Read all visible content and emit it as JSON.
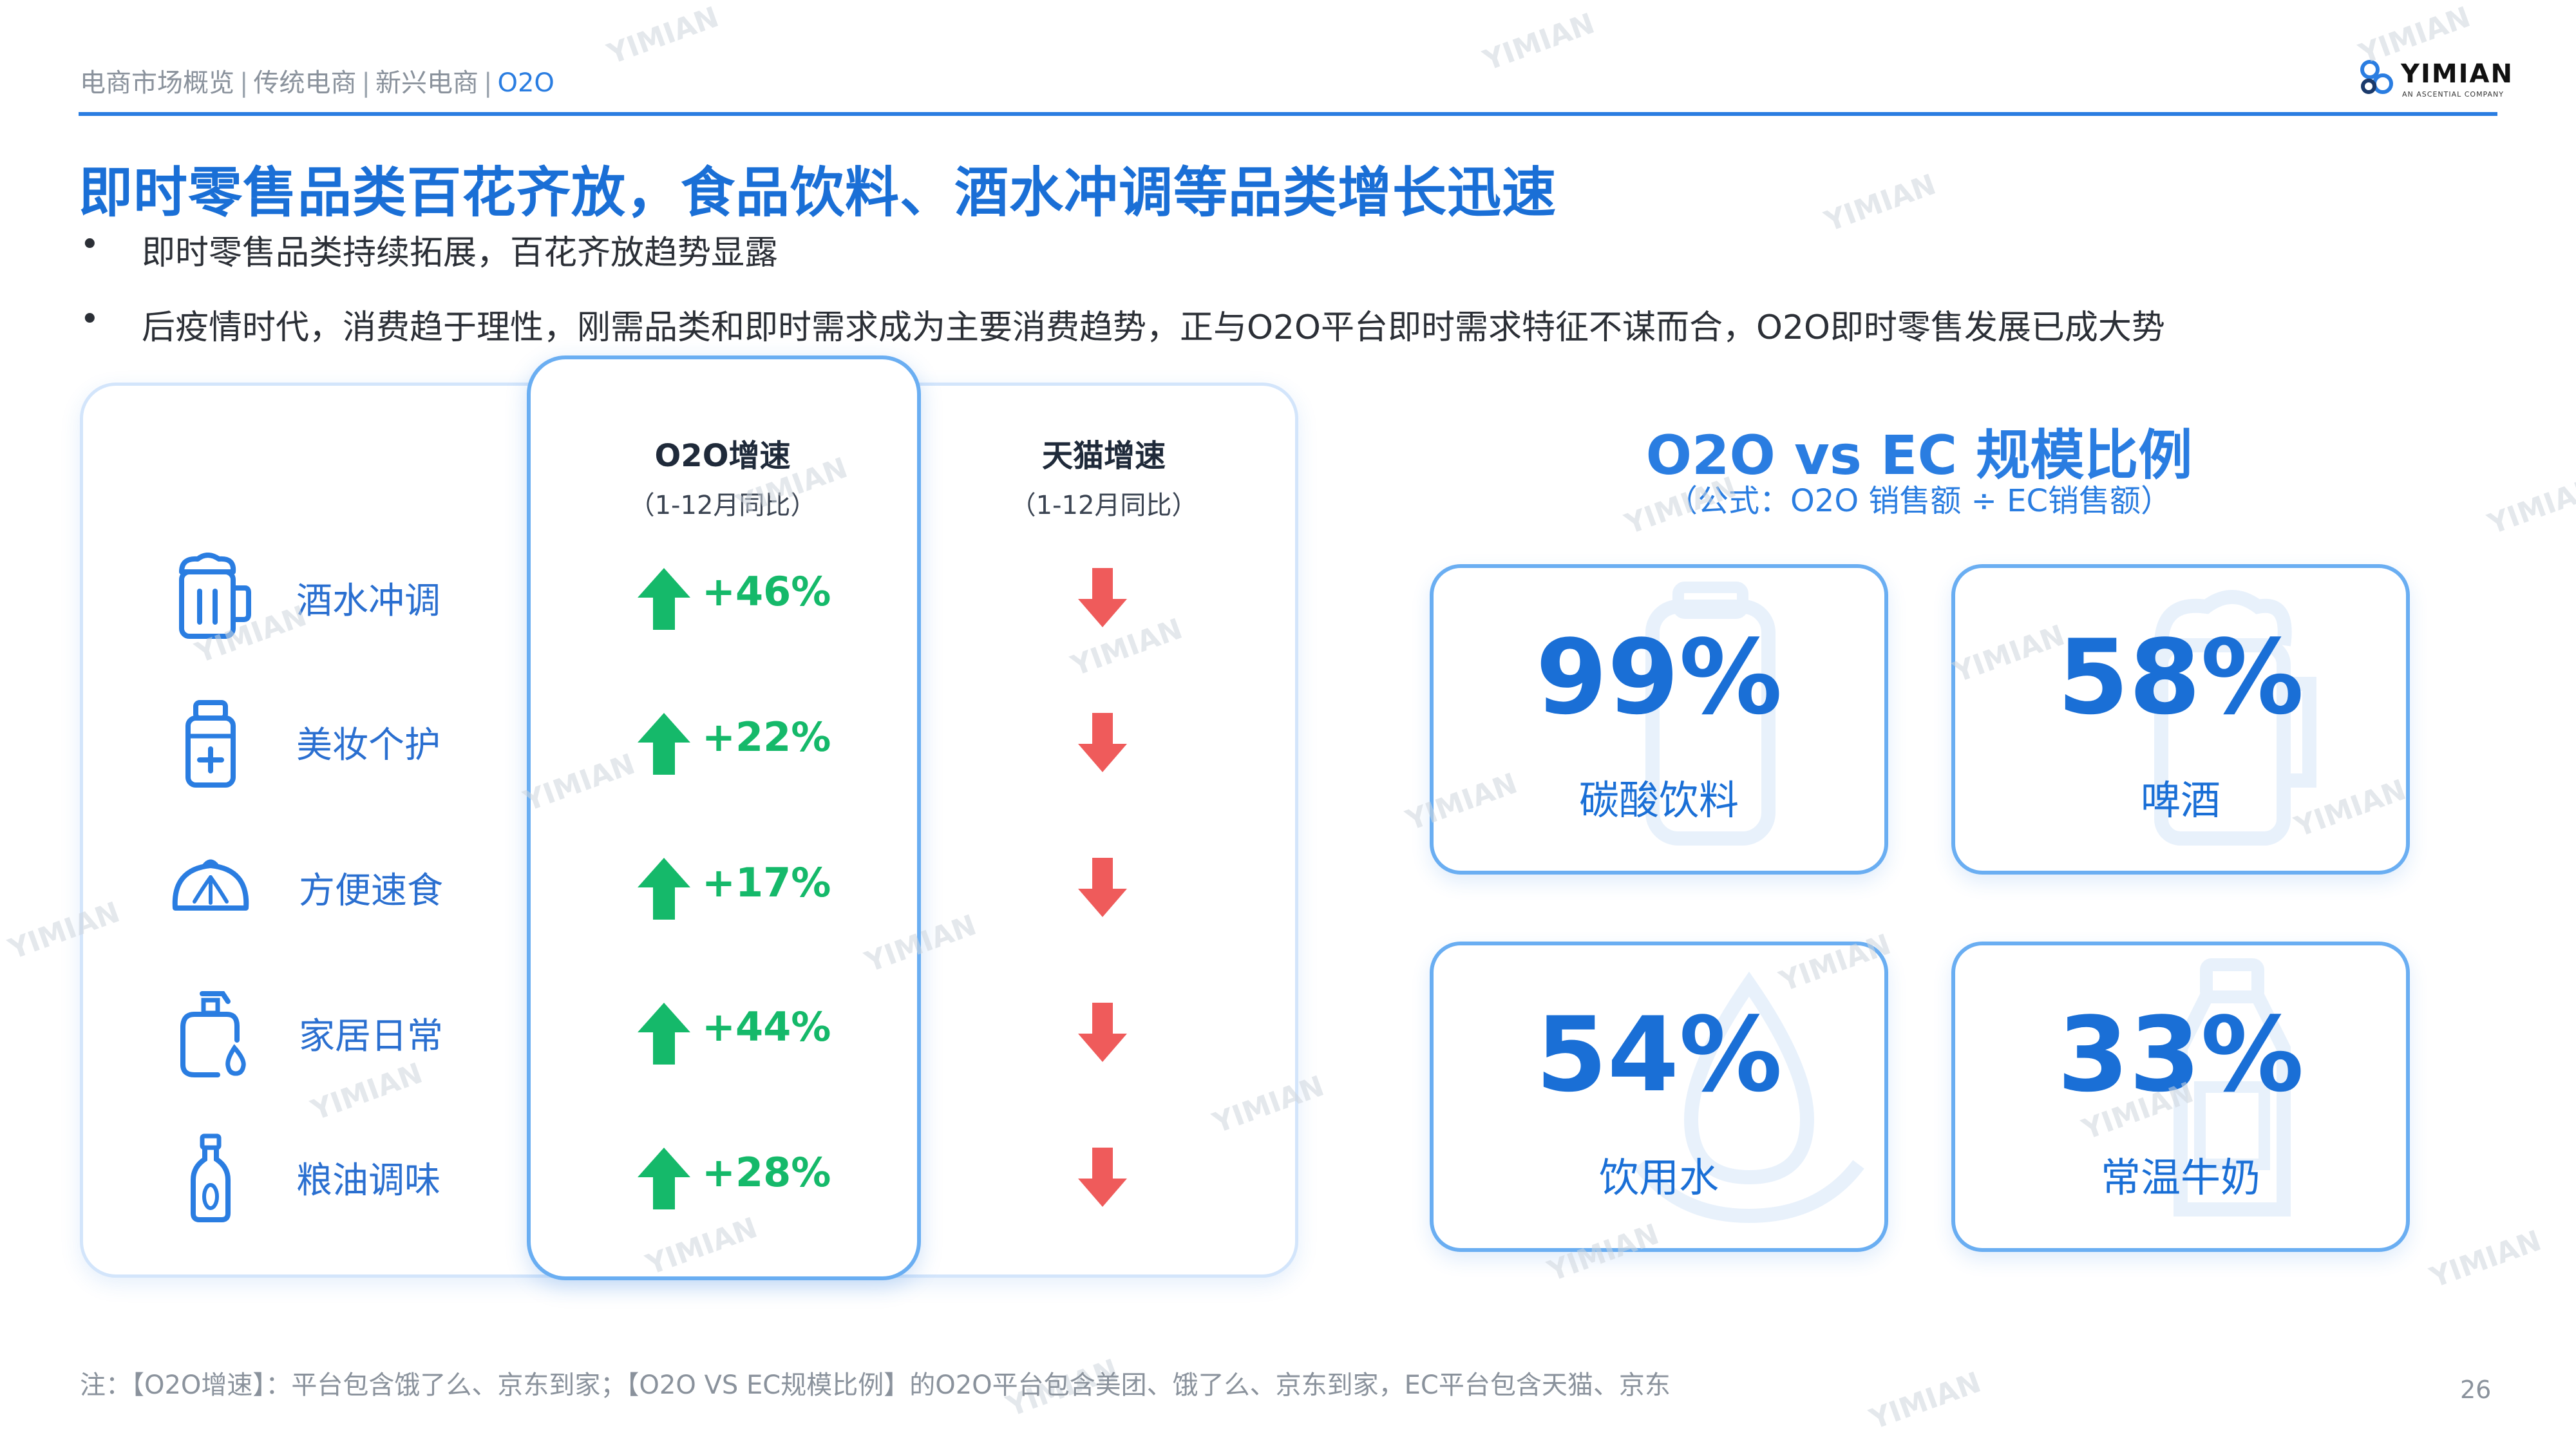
{
  "header": {
    "breadcrumb": [
      "电商市场概览",
      "传统电商",
      "新兴电商",
      "O2O"
    ],
    "logo_text": "YIMIAN",
    "logo_sub": "AN ASCENTIAL COMPANY"
  },
  "title": "即时零售品类百花齐放，食品饮料、酒水冲调等品类增长迅速",
  "bullets": [
    "即时零售品类持续拓展，百花齐放趋势显露",
    "后疫情时代，消费趋于理性，刚需品类和即时需求成为主要消费趋势，正与O2O平台即时需求特征不谋而合，O2O即时零售发展已成大势"
  ],
  "growth_table": {
    "o2o_header": "O2O增速",
    "o2o_sub": "（1-12月同比）",
    "tmall_header": "天猫增速",
    "tmall_sub": "（1-12月同比）",
    "rows": [
      {
        "icon": "beer-mug-icon",
        "label": "酒水冲调",
        "o2o": "+46%",
        "tmall_trend": "down"
      },
      {
        "icon": "cosmetics-bottle-icon",
        "label": "美妆个护",
        "o2o": "+22%",
        "tmall_trend": "down"
      },
      {
        "icon": "bun-icon",
        "label": "方便速食",
        "o2o": "+17%",
        "tmall_trend": "down"
      },
      {
        "icon": "soap-dispenser-icon",
        "label": "家居日常",
        "o2o": "+44%",
        "tmall_trend": "down"
      },
      {
        "icon": "oil-bottle-icon",
        "label": "粮油调味",
        "o2o": "+28%",
        "tmall_trend": "down"
      }
    ],
    "colors": {
      "up": "#15b96a",
      "down": "#ef5b5b",
      "icon": "#2a7de1"
    }
  },
  "ratio": {
    "title": "O2O vs EC 规模比例",
    "subtitle": "（公式：O2O 销售额 ÷ EC销售额）",
    "cards": [
      {
        "value": "99%",
        "label": "碳酸饮料",
        "bg_icon": "soda-can-icon"
      },
      {
        "value": "58%",
        "label": "啤酒",
        "bg_icon": "beer-mug-icon"
      },
      {
        "value": "54%",
        "label": "饮用水",
        "bg_icon": "water-drop-icon"
      },
      {
        "value": "33%",
        "label": "常温牛奶",
        "bg_icon": "milk-bottle-icon"
      }
    ]
  },
  "watermark_text": "YIMIAN",
  "footnote": "注：【O2O增速】：平台包含饿了么、京东到家；【O2O VS EC规模比例】的O2O平台包含美团、饿了么、京东到家，EC平台包含天猫、京东",
  "page_number": "26"
}
